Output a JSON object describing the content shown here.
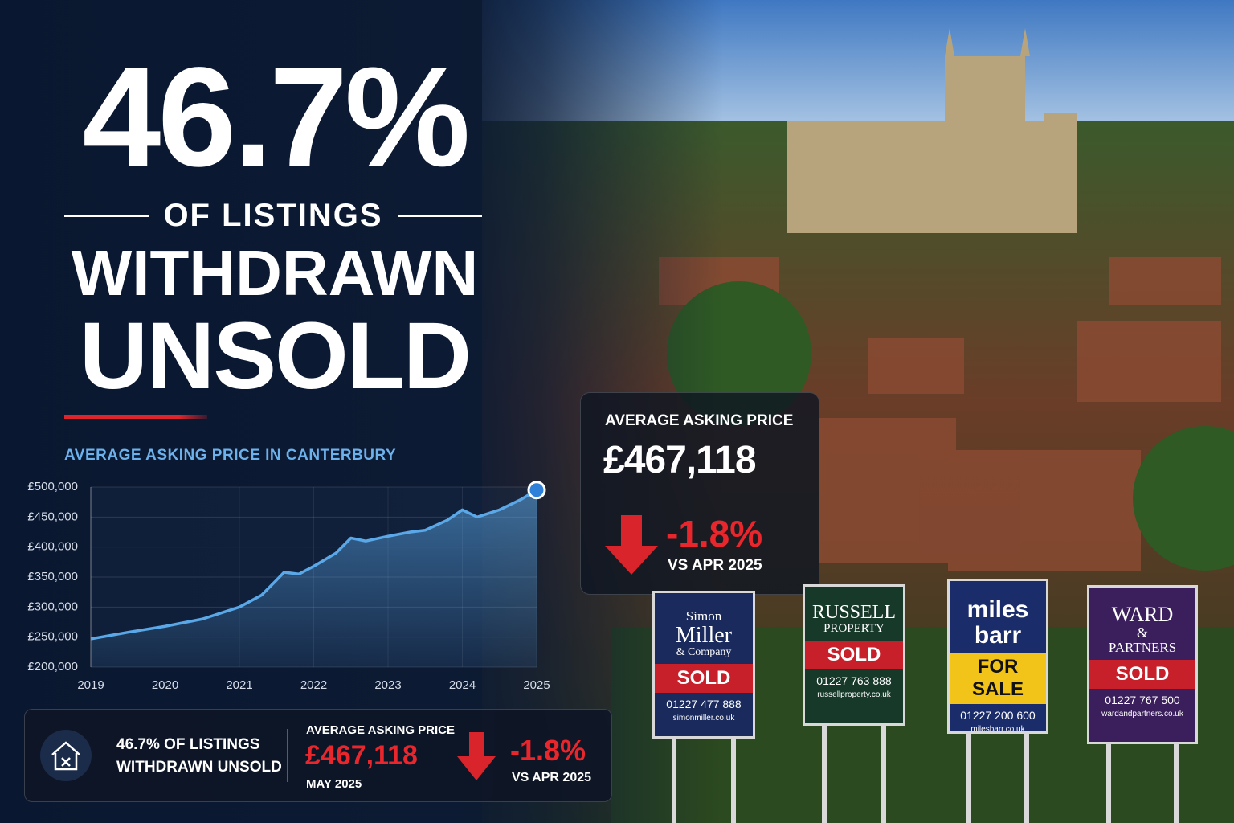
{
  "headline": {
    "big": "46.7%",
    "line1": "OF LISTINGS",
    "line2": "WITHDRAWN",
    "line3": "UNSOLD"
  },
  "chart_data": {
    "type": "line",
    "title": "AVERAGE ASKING PRICE IN CANTERBURY",
    "color": "#5aa8e8",
    "grid": true,
    "x": [
      2019,
      2019.5,
      2020,
      2020.5,
      2021,
      2021.3,
      2021.5,
      2021.6,
      2021.8,
      2022,
      2022.3,
      2022.5,
      2022.7,
      2023,
      2023.3,
      2023.5,
      2023.8,
      2024,
      2024.2,
      2024.5,
      2024.8,
      2025
    ],
    "values": [
      247000,
      258000,
      268000,
      280000,
      300000,
      320000,
      345000,
      358000,
      355000,
      368000,
      390000,
      415000,
      410000,
      418000,
      425000,
      428000,
      445000,
      462000,
      450000,
      462000,
      480000,
      495000
    ],
    "xlim": [
      2019,
      2025
    ],
    "xticks": [
      2019,
      2020,
      2021,
      2022,
      2023,
      2024,
      2025
    ],
    "ylim": [
      200000,
      500000
    ],
    "yticks": [
      {
        "value": 200000,
        "label": "£200,000"
      },
      {
        "value": 250000,
        "label": "£250,000"
      },
      {
        "value": 300000,
        "label": "£300,000"
      },
      {
        "value": 350000,
        "label": "£350,000"
      },
      {
        "value": 400000,
        "label": "£400,000"
      },
      {
        "value": 450000,
        "label": "£450,000"
      },
      {
        "value": 500000,
        "label": "£500,000"
      }
    ]
  },
  "price_card": {
    "label": "AVERAGE ASKING PRICE",
    "price": "£467,118",
    "change": "-1.8%",
    "comparison": "VS APR 2025"
  },
  "summary_bar": {
    "stat_lines": [
      "46.7% OF LISTINGS",
      "WITHDRAWN UNSOLD"
    ],
    "label": "AVERAGE ASKING PRICE",
    "price": "£467,118",
    "date": "MAY 2025",
    "change": "-1.8%",
    "comparison": "VS APR 2025"
  },
  "signs": [
    {
      "name_lines": [
        "Simon",
        "Miller",
        "& Company"
      ],
      "status": "SOLD",
      "phone": "01227 477 888",
      "web": "simonmiller.co.uk"
    },
    {
      "name_lines": [
        "RUSSELL",
        "PROPERTY"
      ],
      "status": "SOLD",
      "phone": "01227 763 888",
      "web": "russellproperty.co.uk"
    },
    {
      "name_lines": [
        "miles",
        "barr"
      ],
      "status": "FOR SALE",
      "phone": "01227 200 600",
      "web": "milesbarr.co.uk"
    },
    {
      "name_lines": [
        "WARD",
        "&",
        "PARTNERS"
      ],
      "status": "SOLD",
      "phone": "01227 767 500",
      "web": "wardandpartners.co.uk"
    }
  ]
}
